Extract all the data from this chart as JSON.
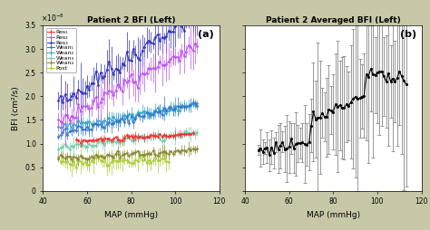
{
  "title_left": "Patient 2 BFI (Left)",
  "title_right": "Patient 2 Averaged BFI (Left)",
  "xlabel": "MAP (mmHg)",
  "ylabel_left": "BFI (cm²/s)",
  "label_a": "(a)",
  "label_b": "(b)",
  "xlim_left": [
    40,
    120
  ],
  "xlim_right": [
    40,
    120
  ],
  "ylim": [
    0,
    3.5e-08
  ],
  "bg_color": "#c8c8a8",
  "plot_bg": "#ffffff",
  "colors": [
    "#ee3333",
    "#bb55ee",
    "#3333bb",
    "#3377cc",
    "#33aacc",
    "#77ccaa",
    "#888833",
    "#aacc33"
  ],
  "labels": [
    "Res₁",
    "Res₂",
    "Res₃",
    "Wean₁",
    "Wean₂",
    "Wean₃",
    "Wean₄",
    "Post"
  ],
  "bases": [
    1.05e-08,
    1.45e-08,
    1.85e-08,
    1.2e-08,
    1.35e-08,
    9e-09,
    6.8e-09,
    5.8e-09
  ],
  "slopes": [
    3e-11,
    2.6e-10,
    3e-10,
    1e-10,
    7.5e-11,
    5.5e-11,
    3e-11,
    1.5e-11
  ],
  "noises": [
    6e-10,
    2e-09,
    2.2e-09,
    1.1e-09,
    1.1e-09,
    9e-10,
    9e-10,
    1.3e-09
  ],
  "err_scales": [
    0.6,
    0.9,
    1.0,
    0.7,
    0.7,
    0.6,
    0.6,
    0.8
  ],
  "x_starts": [
    55,
    47,
    47,
    47,
    47,
    47,
    47,
    47
  ],
  "x_ends": [
    108,
    110,
    110,
    110,
    110,
    110,
    110,
    97
  ]
}
